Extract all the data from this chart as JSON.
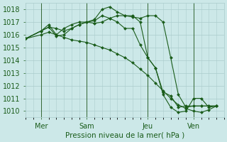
{
  "bg_color": "#cce8e8",
  "grid_color": "#aacccc",
  "line_color": "#1a5c1a",
  "marker_color": "#1a5c1a",
  "xlabel": "Pression niveau de la mer( hPa )",
  "ylim": [
    1009.5,
    1018.5
  ],
  "yticks": [
    1010,
    1011,
    1012,
    1013,
    1014,
    1015,
    1016,
    1017,
    1018
  ],
  "xtick_labels": [
    "Mer",
    "Sam",
    "Jeu",
    "Ven"
  ],
  "xtick_positions": [
    2,
    8,
    16,
    22
  ],
  "vline_positions": [
    2,
    8,
    16,
    22
  ],
  "xlim": [
    0,
    26
  ],
  "series": [
    {
      "x": [
        0,
        2,
        3,
        4,
        5,
        6,
        7,
        8,
        9,
        10,
        11,
        12,
        13,
        14,
        15,
        16,
        17,
        18,
        19,
        20,
        21,
        22,
        23,
        24,
        25
      ],
      "y": [
        1015.7,
        1016.0,
        1016.2,
        1016.0,
        1015.8,
        1015.6,
        1015.5,
        1015.4,
        1015.2,
        1015.0,
        1014.8,
        1014.5,
        1014.2,
        1013.8,
        1013.3,
        1012.8,
        1012.2,
        1011.6,
        1011.0,
        1010.5,
        1010.2,
        1010.0,
        1009.9,
        1010.1,
        1010.4
      ]
    },
    {
      "x": [
        0,
        2,
        3,
        4,
        5,
        6,
        7,
        8,
        9,
        10,
        11,
        12,
        13,
        14,
        15,
        16,
        17,
        18,
        19,
        20,
        21,
        22,
        23,
        24,
        25
      ],
      "y": [
        1015.7,
        1016.3,
        1016.6,
        1016.5,
        1016.3,
        1016.5,
        1016.8,
        1017.0,
        1016.9,
        1017.0,
        1017.3,
        1017.0,
        1016.5,
        1016.5,
        1015.2,
        1014.2,
        1013.4,
        1011.3,
        1010.3,
        1009.9,
        1010.0,
        1011.0,
        1011.0,
        1010.3,
        1010.4
      ]
    },
    {
      "x": [
        0,
        2,
        3,
        4,
        5,
        6,
        7,
        8,
        9,
        10,
        11,
        12,
        13,
        14,
        15,
        16,
        17,
        18,
        19,
        20,
        21,
        22,
        23,
        24,
        25
      ],
      "y": [
        1015.7,
        1016.3,
        1016.8,
        1016.0,
        1016.5,
        1016.8,
        1017.0,
        1017.0,
        1017.2,
        1018.0,
        1018.2,
        1017.8,
        1017.5,
        1017.4,
        1017.3,
        1017.5,
        1017.5,
        1017.0,
        1014.2,
        1011.3,
        1010.3,
        1010.4,
        1010.4,
        1010.4,
        1010.4
      ]
    },
    {
      "x": [
        0,
        2,
        3,
        4,
        5,
        6,
        7,
        8,
        9,
        10,
        11,
        12,
        13,
        14,
        15,
        16,
        17,
        18,
        19,
        20,
        21,
        22,
        23,
        24,
        25
      ],
      "y": [
        1015.7,
        1016.3,
        1016.6,
        1015.9,
        1016.0,
        1016.5,
        1016.8,
        1017.0,
        1017.1,
        1017.5,
        1017.3,
        1017.5,
        1017.5,
        1017.5,
        1017.0,
        1014.2,
        1013.4,
        1011.5,
        1011.2,
        1010.3,
        1010.4,
        1010.4,
        1010.4,
        1010.4,
        1010.4
      ]
    }
  ]
}
